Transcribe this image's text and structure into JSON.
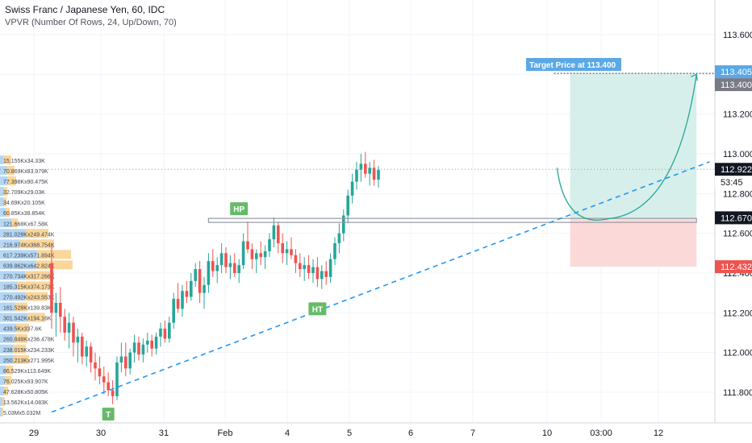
{
  "header": {
    "symbol_title": "Swiss Franc / Japanese Yen, 60, IDC",
    "indicator": "VPVR (Number Of Rows, 24, Up/Down, 70)"
  },
  "colors": {
    "up": "#26a69a",
    "down": "#ef5350",
    "trendline": "#2196f3",
    "profit_zone": "#d7efea",
    "loss_zone": "#fcd9d9",
    "label_green": "#66bb6a",
    "target_label": "#5aa8e6",
    "price_current": "#131722",
    "price_entry": "#131722",
    "price_stop": "#ef5350",
    "price_target_grey": "#787b86"
  },
  "chart_data": {
    "type": "candlestick",
    "title": "Swiss Franc / Japanese Yen, 60, IDC",
    "ylim": [
      111.7,
      113.7
    ],
    "y_ticks": [
      "113.600",
      "113.400",
      "113.200",
      "113.000",
      "112.800",
      "112.600",
      "112.400",
      "112.200",
      "112.000",
      "111.800"
    ],
    "x_ticks": [
      "29",
      "30",
      "31",
      "Feb",
      "4",
      "5",
      "6",
      "7",
      "10",
      "03:00",
      "12"
    ],
    "price_labels": {
      "target_dotted": "113.405",
      "target": "113.400",
      "current": "112.922",
      "countdown": "53:45",
      "entry": "112.670",
      "stop": "112.432"
    },
    "target_callout": "Target Price at 113.400",
    "annotations": [
      "HP",
      "HT",
      "T"
    ],
    "levels": {
      "target": 113.405,
      "entry": 112.67,
      "stop": 112.432,
      "current": 112.922,
      "hp_low": 112.655,
      "hp_high": 112.675
    },
    "trendline": {
      "from": [
        0,
        111.7
      ],
      "to": [
        151,
        112.96
      ]
    },
    "projection": {
      "start": [
        116,
        112.93
      ],
      "bottom": [
        128,
        112.67
      ],
      "end": [
        148,
        113.4
      ]
    },
    "zones": {
      "x_start": 119,
      "x_end": 148
    },
    "candles": [
      [
        112.45,
        112.55,
        112.12,
        112.2
      ],
      [
        112.2,
        112.3,
        112.08,
        112.25
      ],
      [
        112.25,
        112.33,
        112.1,
        112.18
      ],
      [
        112.18,
        112.22,
        112.06,
        112.1
      ],
      [
        112.1,
        112.2,
        112.02,
        112.15
      ],
      [
        112.15,
        112.18,
        111.98,
        112.05
      ],
      [
        112.05,
        112.12,
        111.95,
        112.08
      ],
      [
        112.08,
        112.1,
        111.94,
        111.98
      ],
      [
        111.98,
        112.06,
        111.93,
        112.03
      ],
      [
        112.03,
        112.05,
        111.9,
        111.95
      ],
      [
        111.95,
        112.0,
        111.86,
        111.92
      ],
      [
        111.92,
        111.98,
        111.84,
        111.88
      ],
      [
        111.88,
        111.93,
        111.79,
        111.85
      ],
      [
        111.85,
        111.9,
        111.78,
        111.81
      ],
      [
        111.81,
        111.86,
        111.74,
        111.78
      ],
      [
        111.78,
        111.98,
        111.76,
        111.95
      ],
      [
        111.95,
        112.05,
        111.9,
        111.98
      ],
      [
        111.98,
        112.05,
        111.88,
        111.92
      ],
      [
        111.92,
        112.02,
        111.89,
        112.0
      ],
      [
        112.0,
        112.09,
        111.95,
        112.05
      ],
      [
        112.05,
        112.08,
        111.96,
        111.99
      ],
      [
        111.99,
        112.07,
        111.95,
        112.04
      ],
      [
        112.04,
        112.1,
        112.0,
        112.06
      ],
      [
        112.06,
        112.09,
        111.98,
        112.02
      ],
      [
        112.02,
        112.1,
        111.99,
        112.08
      ],
      [
        112.08,
        112.15,
        112.03,
        112.12
      ],
      [
        112.12,
        112.16,
        112.05,
        112.07
      ],
      [
        112.07,
        112.18,
        112.05,
        112.15
      ],
      [
        112.15,
        112.3,
        112.12,
        112.27
      ],
      [
        112.27,
        112.35,
        112.2,
        112.22
      ],
      [
        112.22,
        112.34,
        112.18,
        112.31
      ],
      [
        112.31,
        112.36,
        112.25,
        112.28
      ],
      [
        112.28,
        112.4,
        112.26,
        112.36
      ],
      [
        112.36,
        112.45,
        112.33,
        112.42
      ],
      [
        112.42,
        112.46,
        112.25,
        112.3
      ],
      [
        112.3,
        112.38,
        112.22,
        112.34
      ],
      [
        112.34,
        112.5,
        112.3,
        112.46
      ],
      [
        112.46,
        112.52,
        112.38,
        112.41
      ],
      [
        112.41,
        112.48,
        112.35,
        112.44
      ],
      [
        112.44,
        112.55,
        112.4,
        112.5
      ],
      [
        112.5,
        112.53,
        112.4,
        112.43
      ],
      [
        112.43,
        112.49,
        112.37,
        112.45
      ],
      [
        112.45,
        112.5,
        112.38,
        112.4
      ],
      [
        112.4,
        112.47,
        112.35,
        112.44
      ],
      [
        112.44,
        112.6,
        112.42,
        112.56
      ],
      [
        112.56,
        112.66,
        112.5,
        112.52
      ],
      [
        112.52,
        112.55,
        112.42,
        112.47
      ],
      [
        112.47,
        112.52,
        112.4,
        112.5
      ],
      [
        112.5,
        112.56,
        112.44,
        112.48
      ],
      [
        112.48,
        112.54,
        112.42,
        112.51
      ],
      [
        112.51,
        112.6,
        112.48,
        112.57
      ],
      [
        112.57,
        112.68,
        112.53,
        112.64
      ],
      [
        112.64,
        112.66,
        112.5,
        112.55
      ],
      [
        112.55,
        112.6,
        112.45,
        112.5
      ],
      [
        112.5,
        112.56,
        112.44,
        112.52
      ],
      [
        112.52,
        112.58,
        112.47,
        112.49
      ],
      [
        112.49,
        112.52,
        112.4,
        112.45
      ],
      [
        112.45,
        112.5,
        112.38,
        112.42
      ],
      [
        112.42,
        112.48,
        112.36,
        112.44
      ],
      [
        112.44,
        112.49,
        112.37,
        112.4
      ],
      [
        112.4,
        112.47,
        112.35,
        112.43
      ],
      [
        112.43,
        112.48,
        112.33,
        112.37
      ],
      [
        112.37,
        112.44,
        112.32,
        112.41
      ],
      [
        112.41,
        112.46,
        112.34,
        112.38
      ],
      [
        112.38,
        112.5,
        112.35,
        112.47
      ],
      [
        112.47,
        112.58,
        112.44,
        112.55
      ],
      [
        112.55,
        112.65,
        112.5,
        112.6
      ],
      [
        112.6,
        112.72,
        112.56,
        112.69
      ],
      [
        112.69,
        112.82,
        112.65,
        112.79
      ],
      [
        112.79,
        112.9,
        112.75,
        112.86
      ],
      [
        112.86,
        112.96,
        112.82,
        112.92
      ],
      [
        112.92,
        113.0,
        112.86,
        112.95
      ],
      [
        112.95,
        113.01,
        112.88,
        112.9
      ],
      [
        112.9,
        112.96,
        112.84,
        112.93
      ],
      [
        112.93,
        112.97,
        112.84,
        112.87
      ],
      [
        112.87,
        112.94,
        112.83,
        112.92
      ]
    ]
  },
  "vpvr": {
    "rows": [
      {
        "label": "15.155Kx34.33K",
        "up": 4,
        "down": 10
      },
      {
        "label": "70.869Kx83.979K",
        "up": 8,
        "down": 10
      },
      {
        "label": "77.398Kx90.475K",
        "up": 9,
        "down": 11
      },
      {
        "label": "32.709Kx29.03K",
        "up": 5,
        "down": 4
      },
      {
        "label": "34.69Kx20.105K",
        "up": 5,
        "down": 3
      },
      {
        "label": "60.85Kx38.854K",
        "up": 7,
        "down": 5
      },
      {
        "label": "121.668Kx67.58K",
        "up": 14,
        "down": 8
      },
      {
        "label": "281.028Kx249.474K",
        "up": 32,
        "down": 28
      },
      {
        "label": "216.974Kx368.754K",
        "up": 25,
        "down": 42
      },
      {
        "label": "617.239Kx571.894K",
        "up": 46,
        "down": 42
      },
      {
        "label": "639.862Kx642.824K",
        "up": 45,
        "down": 45
      },
      {
        "label": "270.734Kx317.266K",
        "up": 31,
        "down": 36
      },
      {
        "label": "185.315Kx374.173K",
        "up": 21,
        "down": 42
      },
      {
        "label": "270.492Kx243.553K",
        "up": 31,
        "down": 28
      },
      {
        "label": "161.528Kx139.83K",
        "up": 18,
        "down": 16
      },
      {
        "label": "301.542Kx194.16K",
        "up": 34,
        "down": 22
      },
      {
        "label": "439.5Kx337.6K",
        "up": 20,
        "down": 16
      },
      {
        "label": "260.848Kx236.478K",
        "up": 18,
        "down": 16
      },
      {
        "label": "238.015Kx234.233K",
        "up": 16,
        "down": 16
      },
      {
        "label": "250.213Kx271.995K",
        "up": 17,
        "down": 19
      },
      {
        "label": "86.529Kx113.649K",
        "up": 7,
        "down": 9
      },
      {
        "label": "76.025Kx93.907K",
        "up": 6,
        "down": 8
      },
      {
        "label": "47.628Kx50.805K",
        "up": 5,
        "down": 5
      },
      {
        "label": "13.562Kx14.083K",
        "up": 3,
        "down": 3
      },
      {
        "label": "5.03Mx5.032M",
        "up": 2,
        "down": 2
      }
    ]
  }
}
